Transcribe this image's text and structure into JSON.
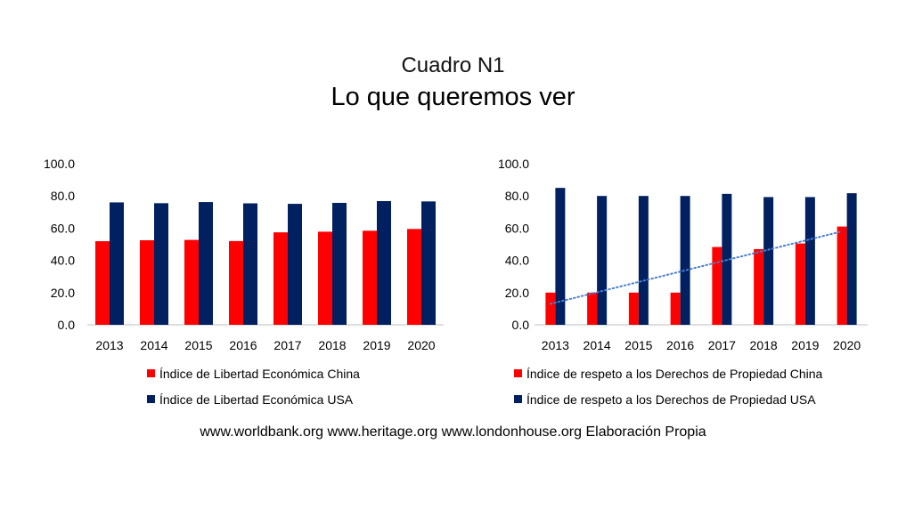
{
  "header": {
    "subtitle": "Cuadro N1",
    "title": "Lo que queremos ver"
  },
  "footer": {
    "source": "www.worldbank.org www.heritage.org www.londonhouse.org Elaboración Propia"
  },
  "colors": {
    "china": "#ff0000",
    "usa": "#002060",
    "trend": "#4a7fd0",
    "axis": "#bfbfbf"
  },
  "chart_data": [
    {
      "type": "bar",
      "categories": [
        "2013",
        "2014",
        "2015",
        "2016",
        "2017",
        "2018",
        "2019",
        "2020"
      ],
      "series": [
        {
          "name": "Índice de Libertad Económica China",
          "values": [
            51.9,
            52.5,
            52.7,
            52.0,
            57.4,
            57.8,
            58.4,
            59.5
          ]
        },
        {
          "name": "Índice de Libertad Económica USA",
          "values": [
            76.0,
            75.5,
            76.2,
            75.4,
            75.1,
            75.7,
            76.8,
            76.6
          ]
        }
      ],
      "yticks": [
        "0.0",
        "20.0",
        "40.0",
        "60.0",
        "80.0",
        "100.0"
      ],
      "ylim": [
        0,
        100
      ],
      "legend": "bottom",
      "grid": false
    },
    {
      "type": "bar",
      "categories": [
        "2013",
        "2014",
        "2015",
        "2016",
        "2017",
        "2018",
        "2019",
        "2020"
      ],
      "series": [
        {
          "name": "Índice de respeto a los Derechos de Propiedad China",
          "values": [
            20.0,
            20.0,
            20.0,
            20.0,
            48.3,
            47.0,
            50.5,
            61.0
          ]
        },
        {
          "name": "Índice de respeto a los Derechos de Propiedad USA",
          "values": [
            85.0,
            80.0,
            80.0,
            80.0,
            81.3,
            79.3,
            79.3,
            81.7
          ]
        }
      ],
      "trendline": {
        "series": "Índice de respeto a los Derechos de Propiedad China",
        "style": "dotted",
        "from": 13,
        "to": 58
      },
      "yticks": [
        "0.0",
        "20.0",
        "40.0",
        "60.0",
        "80.0",
        "100.0"
      ],
      "ylim": [
        0,
        100
      ],
      "legend": "bottom",
      "grid": false
    }
  ]
}
